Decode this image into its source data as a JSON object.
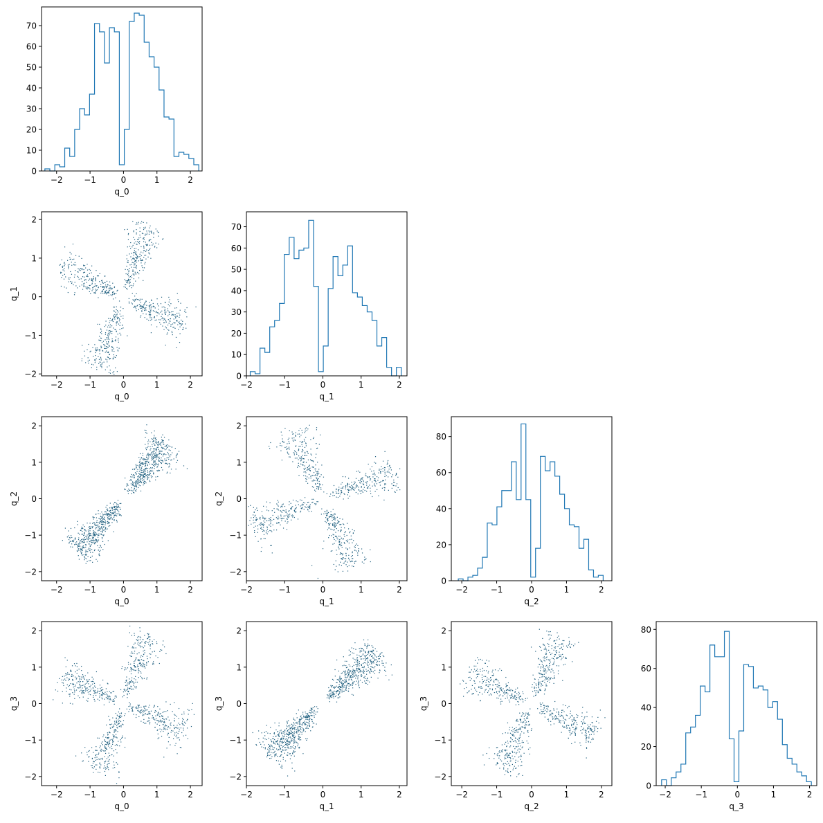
{
  "figure": {
    "variables": [
      "q_0",
      "q_1",
      "q_2",
      "q_3"
    ],
    "colors": {
      "hist": "#1f77b4",
      "scatter": "#1f5f7f"
    }
  },
  "chart_data": [
    {
      "type": "bar",
      "panel": "hist-q_0",
      "xlabel": "q_0",
      "xlim": [
        -2.45,
        2.35
      ],
      "ylim": [
        0,
        79
      ],
      "xticks": [
        -2,
        -1,
        0,
        1,
        2
      ],
      "yticks": [
        0,
        10,
        20,
        30,
        40,
        50,
        60,
        70
      ],
      "bins": {
        "start": -2.35,
        "end": 2.25,
        "counts": [
          1,
          0,
          3,
          2,
          11,
          7,
          20,
          30,
          27,
          37,
          71,
          67,
          52,
          69,
          67,
          3,
          20,
          72,
          76,
          75,
          62,
          55,
          50,
          39,
          26,
          25,
          7,
          9,
          8,
          6,
          3
        ]
      }
    },
    {
      "type": "bar",
      "panel": "hist-q_1",
      "xlabel": "q_1",
      "xlim": [
        -2.0,
        2.2
      ],
      "ylim": [
        0,
        77
      ],
      "xticks": [
        -2,
        -1,
        0,
        1,
        2
      ],
      "yticks": [
        0,
        10,
        20,
        30,
        40,
        50,
        60,
        70
      ],
      "bins": {
        "start": -1.9,
        "end": 2.05,
        "counts": [
          2,
          1,
          13,
          11,
          23,
          26,
          34,
          57,
          65,
          55,
          59,
          60,
          73,
          42,
          2,
          14,
          41,
          56,
          47,
          52,
          61,
          39,
          37,
          33,
          30,
          26,
          14,
          18,
          4,
          0,
          4
        ]
      }
    },
    {
      "type": "bar",
      "panel": "hist-q_2",
      "xlabel": "q_2",
      "xlim": [
        -2.3,
        2.3
      ],
      "ylim": [
        0,
        91
      ],
      "xticks": [
        -2,
        -1,
        0,
        1,
        2
      ],
      "yticks": [
        0,
        20,
        40,
        60,
        80
      ],
      "bins": {
        "start": -2.1,
        "end": 2.05,
        "counts": [
          1,
          0,
          2,
          3,
          7,
          13,
          32,
          31,
          41,
          50,
          50,
          66,
          45,
          87,
          45,
          2,
          18,
          69,
          61,
          66,
          58,
          48,
          40,
          31,
          30,
          18,
          23,
          6,
          2,
          3
        ]
      }
    },
    {
      "type": "bar",
      "panel": "hist-q_3",
      "xlabel": "q_3",
      "xlim": [
        -2.25,
        2.2
      ],
      "ylim": [
        0,
        84
      ],
      "xticks": [
        -2,
        -1,
        0,
        1,
        2
      ],
      "yticks": [
        0,
        20,
        40,
        60,
        80
      ],
      "bins": {
        "start": -2.1,
        "end": 2.05,
        "counts": [
          3,
          0,
          4,
          7,
          11,
          27,
          30,
          36,
          51,
          48,
          72,
          66,
          66,
          79,
          24,
          2,
          28,
          62,
          61,
          50,
          51,
          49,
          40,
          43,
          34,
          21,
          14,
          11,
          7,
          5,
          2
        ]
      }
    },
    {
      "type": "scatter",
      "panel": "scatter-q_0-q_1",
      "xlabel": "q_0",
      "ylabel": "q_1",
      "xlim": [
        -2.45,
        2.35
      ],
      "ylim": [
        -2.05,
        2.2
      ],
      "xticks": [
        -2,
        -1,
        0,
        1,
        2
      ],
      "yticks": [
        -2,
        -1,
        0,
        1,
        2
      ],
      "lobes": [
        [
          0.45,
          1.1
        ],
        [
          1.1,
          -0.45
        ],
        [
          -0.45,
          -1.1
        ],
        [
          -1.1,
          0.45
        ]
      ],
      "points_per_lobe": 250
    },
    {
      "type": "scatter",
      "panel": "scatter-q_0-q_2",
      "xlabel": "q_0",
      "ylabel": "q_2",
      "xlim": [
        -2.45,
        2.35
      ],
      "ylim": [
        -2.25,
        2.25
      ],
      "xticks": [
        -2,
        -1,
        0,
        1,
        2
      ],
      "yticks": [
        -2,
        -1,
        0,
        1,
        2
      ],
      "lobes": [
        [
          0.45,
          0.6
        ],
        [
          1.1,
          1.2
        ],
        [
          -0.45,
          -0.55
        ],
        [
          -1.1,
          -1.05
        ]
      ],
      "points_per_lobe": 250
    },
    {
      "type": "scatter",
      "panel": "scatter-q_1-q_2",
      "xlabel": "q_1",
      "ylabel": "q_2",
      "xlim": [
        -2.0,
        2.2
      ],
      "ylim": [
        -2.25,
        2.25
      ],
      "xticks": [
        -2,
        -1,
        0,
        1,
        2
      ],
      "yticks": [
        -2,
        -1,
        0,
        1,
        2
      ],
      "lobes": [
        [
          -0.5,
          1.2
        ],
        [
          1.2,
          0.5
        ],
        [
          0.5,
          -1.2
        ],
        [
          -1.2,
          -0.5
        ]
      ],
      "points_per_lobe": 250
    },
    {
      "type": "scatter",
      "panel": "scatter-q_0-q_3",
      "xlabel": "q_0",
      "ylabel": "q_3",
      "xlim": [
        -2.45,
        2.35
      ],
      "ylim": [
        -2.25,
        2.25
      ],
      "xticks": [
        -2,
        -1,
        0,
        1,
        2
      ],
      "yticks": [
        -2,
        -1,
        0,
        1,
        2
      ],
      "lobes": [
        [
          0.45,
          1.1
        ],
        [
          1.1,
          -0.45
        ],
        [
          -0.45,
          -1.1
        ],
        [
          -1.1,
          0.45
        ]
      ],
      "points_per_lobe": 250
    },
    {
      "type": "scatter",
      "panel": "scatter-q_1-q_3",
      "xlabel": "q_1",
      "ylabel": "q_3",
      "xlim": [
        -2.0,
        2.2
      ],
      "ylim": [
        -2.25,
        2.25
      ],
      "xticks": [
        -2,
        -1,
        0,
        1,
        2
      ],
      "yticks": [
        -2,
        -1,
        0,
        1,
        2
      ],
      "lobes": [
        [
          0.5,
          0.5
        ],
        [
          1.2,
          1.2
        ],
        [
          -0.5,
          -0.5
        ],
        [
          -1.2,
          -1.2
        ]
      ],
      "points_per_lobe": 250
    },
    {
      "type": "scatter",
      "panel": "scatter-q_2-q_3",
      "xlabel": "q_2",
      "ylabel": "q_3",
      "xlim": [
        -2.3,
        2.3
      ],
      "ylim": [
        -2.25,
        2.25
      ],
      "xticks": [
        -2,
        -1,
        0,
        1,
        2
      ],
      "yticks": [
        -2,
        -1,
        0,
        1,
        2
      ],
      "lobes": [
        [
          0.5,
          1.1
        ],
        [
          1.1,
          -0.5
        ],
        [
          -0.5,
          -1.1
        ],
        [
          -1.1,
          0.5
        ]
      ],
      "points_per_lobe": 250
    }
  ]
}
